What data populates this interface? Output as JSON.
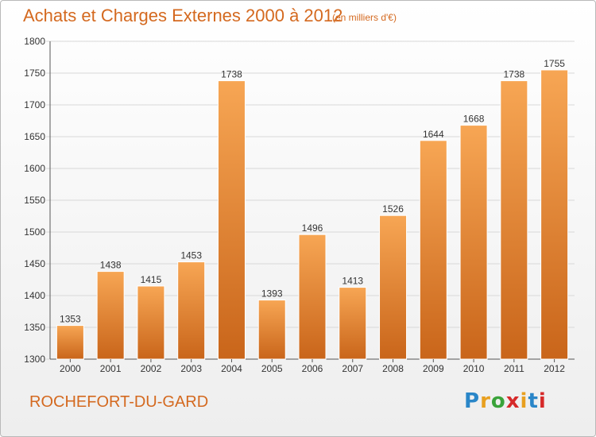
{
  "header": {
    "title": "Achats et Charges Externes 2000 à 2012",
    "unit": "(en milliers d'€)"
  },
  "footer": {
    "city": "ROCHEFORT-DU-GARD",
    "logo_letters": [
      {
        "ch": "P",
        "color": "#2a86c8"
      },
      {
        "ch": "r",
        "color": "#e8a020"
      },
      {
        "ch": "o",
        "color": "#3aa33a"
      },
      {
        "ch": "x",
        "color": "#d62a2a"
      },
      {
        "ch": "i",
        "color": "#e8a020"
      },
      {
        "ch": "t",
        "color": "#2a86c8"
      },
      {
        "ch": "i",
        "color": "#d62a2a"
      }
    ]
  },
  "colors": {
    "bar_top": "#f7a654",
    "bar_bottom": "#c9651a",
    "grid": "#d8d8d8",
    "text_accent": "#d4691f"
  },
  "chart_data": {
    "type": "bar",
    "categories": [
      "2000",
      "2001",
      "2002",
      "2003",
      "2004",
      "2005",
      "2006",
      "2007",
      "2008",
      "2009",
      "2010",
      "2011",
      "2012"
    ],
    "values": [
      1353,
      1438,
      1415,
      1453,
      1738,
      1393,
      1496,
      1413,
      1526,
      1644,
      1668,
      1738,
      1755
    ],
    "title": "Achats et Charges Externes 2000 à 2012",
    "ylim": [
      1300,
      1800
    ],
    "yticks": [
      1300,
      1350,
      1400,
      1450,
      1500,
      1550,
      1600,
      1650,
      1700,
      1750,
      1800
    ],
    "grid": true,
    "legend": "none"
  }
}
